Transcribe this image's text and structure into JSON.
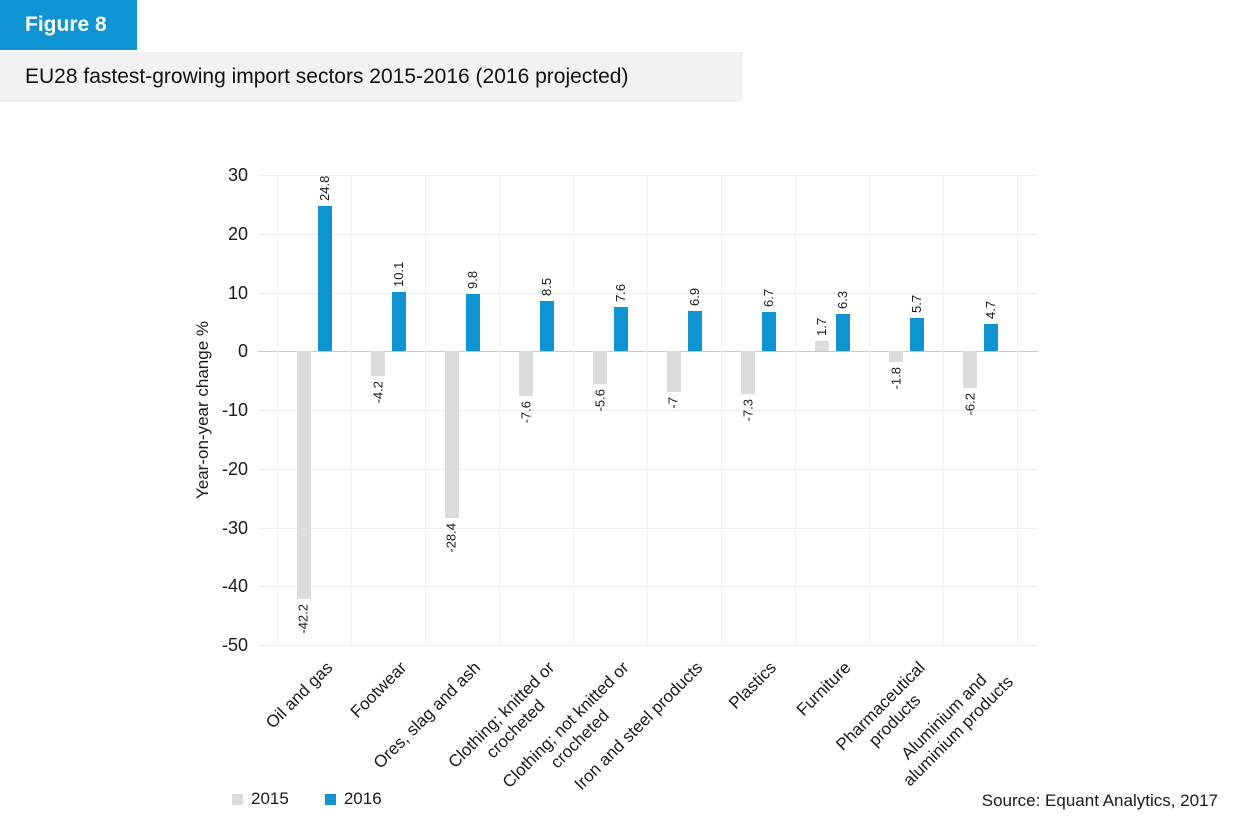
{
  "header": {
    "figure_label": "Figure 8",
    "title": "EU28 fastest-growing import sectors 2015-2016 (2016 projected)"
  },
  "source": "Source: Equant Analytics, 2017",
  "colors": {
    "accent_blue": "#0e94d2",
    "bar_gray": "#dcdcdc",
    "title_bar_bg": "#f2f2f2",
    "text": "#1a1a1a"
  },
  "legend": {
    "items": [
      {
        "label": "2015",
        "color": "#dcdcdc"
      },
      {
        "label": "2016",
        "color": "#0e94d2"
      }
    ]
  },
  "chart_data": {
    "type": "bar",
    "title": "EU28 fastest-growing import sectors 2015-2016 (2016 projected)",
    "xlabel": "",
    "ylabel": "Year-on-year change %",
    "ylim": [
      -50,
      30
    ],
    "yticks": [
      30,
      20,
      10,
      0,
      -10,
      -20,
      -30,
      -40,
      -50
    ],
    "grid": true,
    "legend_position": "bottom-left",
    "categories": [
      "Oil and gas",
      "Footwear",
      "Ores, slag and ash",
      "Clothing; knitted or crocheted",
      "Clothing; not knitted or crocheted",
      "Iron and steel products",
      "Plastics",
      "Furniture",
      "Pharmaceutical products",
      "Aluminium and aluminium products"
    ],
    "category_lines": [
      [
        "Oil and gas"
      ],
      [
        "Footwear"
      ],
      [
        "Ores, slag and ash"
      ],
      [
        "Clothing; knitted or",
        "crocheted"
      ],
      [
        "Clothing; not knitted or",
        "crocheted"
      ],
      [
        "Iron and steel products"
      ],
      [
        "Plastics"
      ],
      [
        "Furniture"
      ],
      [
        "Pharmaceutical",
        "products"
      ],
      [
        "Aluminium and",
        "aluminium products"
      ]
    ],
    "series": [
      {
        "name": "2015",
        "color": "#dcdcdc",
        "values": [
          -42.2,
          -4.2,
          -28.4,
          -7.6,
          -5.6,
          -7,
          -7.3,
          1.7,
          -1.8,
          -6.2
        ],
        "labels": [
          "-42.2",
          "-4.2",
          "-28.4",
          "-7.6",
          "-5.6",
          "-7",
          "-7.3",
          "1.7",
          "-1.8",
          "-6.2"
        ]
      },
      {
        "name": "2016",
        "color": "#0e94d2",
        "values": [
          24.8,
          10.1,
          9.8,
          8.5,
          7.6,
          6.9,
          6.7,
          6.3,
          5.7,
          4.7
        ],
        "labels": [
          "24.8",
          "10.1",
          "9.8",
          "8.5",
          "7.6",
          "6.9",
          "6.7",
          "6.3",
          "5.7",
          "4.7"
        ]
      }
    ]
  }
}
